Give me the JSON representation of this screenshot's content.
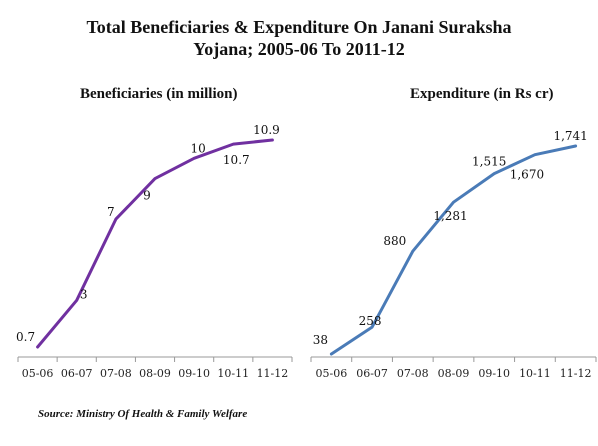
{
  "title_line1": "Total Beneficiaries & Expenditure On Janani Suraksha",
  "title_line2": "Yojana; 2005-06 To 2011-12",
  "source": "Source: Ministry Of Health & Family Welfare",
  "chart_data": [
    {
      "type": "line",
      "title": "Beneficiaries (in million)",
      "categories": [
        "05-06",
        "06-07",
        "07-08",
        "08-09",
        "09-10",
        "10-11",
        "11-12"
      ],
      "values": [
        0.7,
        3,
        7,
        9,
        10,
        10.7,
        10.9
      ],
      "labels": [
        "0.7",
        "3",
        "7",
        "9",
        "10",
        "10.7",
        "10.9"
      ],
      "color": "#7030a0"
    },
    {
      "type": "line",
      "title": "Expenditure (in Rs cr)",
      "categories": [
        "05-06",
        "06-07",
        "07-08",
        "08-09",
        "09-10",
        "10-11",
        "11-12"
      ],
      "values": [
        38,
        258,
        880,
        1281,
        1515,
        1670,
        1741
      ],
      "labels": [
        "38",
        "258",
        "880",
        "1,281",
        "1,515",
        "1,670",
        "1,741"
      ],
      "color": "#4a7bb7"
    }
  ]
}
